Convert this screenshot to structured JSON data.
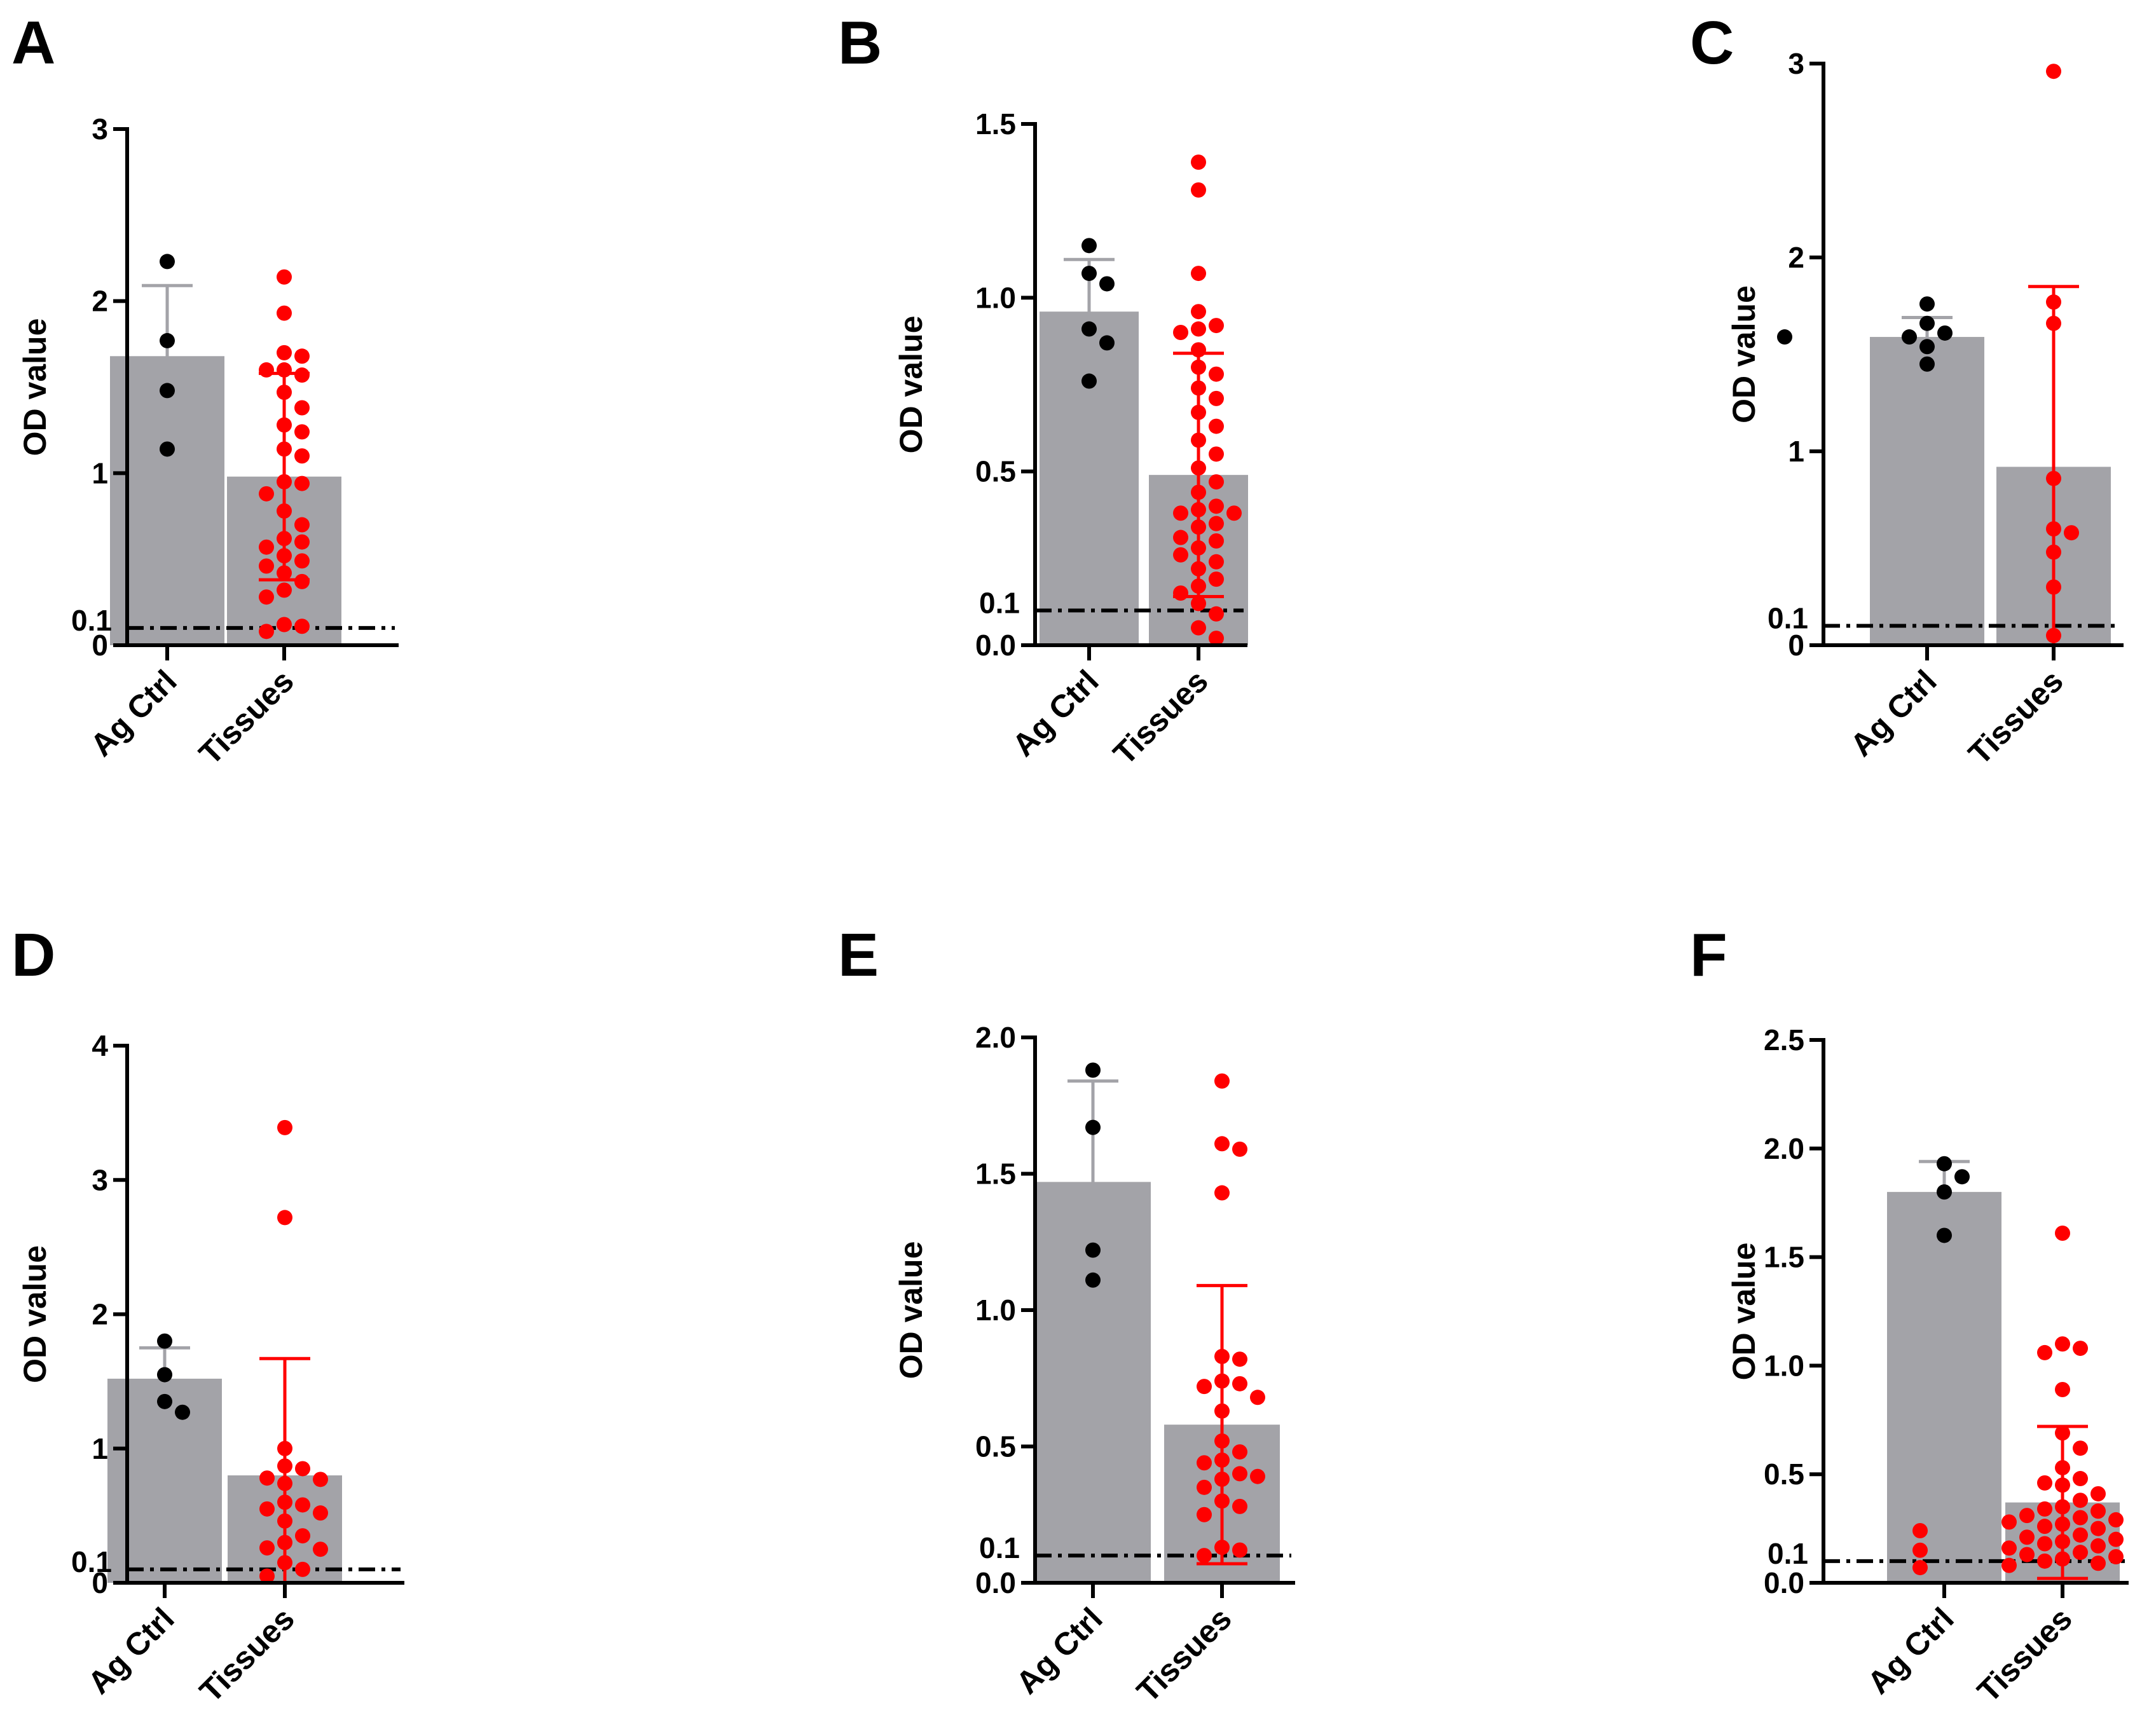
{
  "colors": {
    "bar": "#a3a3a8",
    "ctrl_points": "#000000",
    "tissue_points": "#ff0000",
    "ctrl_error": "#a3a3a8",
    "tissue_error": "#ff0000",
    "axis": "#000000"
  },
  "chart_data": [
    {
      "panel": "A",
      "type": "bar",
      "ylabel": "OD value",
      "categories": [
        "Ag Ctrl",
        "Tissues"
      ],
      "ylim": [
        0,
        3
      ],
      "yticks": [
        {
          "v": 0,
          "label": "0"
        },
        {
          "v": 1,
          "label": "1"
        },
        {
          "v": 2,
          "label": "2"
        },
        {
          "v": 3,
          "label": "3"
        }
      ],
      "cutoff": {
        "value": 0.1,
        "label": "0.1"
      },
      "bars": [
        {
          "category": "Ag Ctrl",
          "mean": 1.68,
          "sd": 0.41,
          "points": [
            2.23,
            1.77,
            1.48,
            1.14
          ]
        },
        {
          "category": "Tissues",
          "mean": 0.98,
          "sd": 0.6,
          "points": [
            2.14,
            1.93,
            1.7,
            1.68,
            1.6,
            1.6,
            1.57,
            1.47,
            1.38,
            1.28,
            1.24,
            1.14,
            1.1,
            0.95,
            0.94,
            0.88,
            0.78,
            0.7,
            0.62,
            0.6,
            0.57,
            0.52,
            0.49,
            0.46,
            0.42,
            0.37,
            0.32,
            0.28,
            0.12,
            0.11,
            0.08
          ]
        }
      ]
    },
    {
      "panel": "B",
      "type": "bar",
      "ylabel": "OD value",
      "categories": [
        "Ag Ctrl",
        "Tissues"
      ],
      "ylim": [
        0,
        1.5
      ],
      "yticks": [
        {
          "v": 0,
          "label": "0.0"
        },
        {
          "v": 0.5,
          "label": "0.5"
        },
        {
          "v": 1,
          "label": "1.0"
        },
        {
          "v": 1.5,
          "label": "1.5"
        }
      ],
      "cutoff": {
        "value": 0.1,
        "label": "0.1"
      },
      "bars": [
        {
          "category": "Ag Ctrl",
          "mean": 0.96,
          "sd": 0.15,
          "points": [
            1.15,
            1.07,
            1.04,
            0.91,
            0.87,
            0.76
          ]
        },
        {
          "category": "Tissues",
          "mean": 0.49,
          "sd": 0.35,
          "points": [
            1.39,
            1.31,
            1.07,
            0.96,
            0.92,
            0.91,
            0.9,
            0.85,
            0.8,
            0.78,
            0.74,
            0.71,
            0.67,
            0.63,
            0.59,
            0.55,
            0.51,
            0.47,
            0.44,
            0.4,
            0.39,
            0.38,
            0.38,
            0.35,
            0.34,
            0.31,
            0.3,
            0.28,
            0.26,
            0.24,
            0.22,
            0.19,
            0.17,
            0.15,
            0.12,
            0.09,
            0.05,
            0.02
          ]
        }
      ]
    },
    {
      "panel": "C",
      "type": "bar",
      "ylabel": "OD value",
      "categories": [
        "Ag Ctrl",
        "Tissues"
      ],
      "ylim": [
        0,
        3
      ],
      "yticks": [
        {
          "v": 0,
          "label": "0"
        },
        {
          "v": 1,
          "label": "1"
        },
        {
          "v": 2,
          "label": "2"
        },
        {
          "v": 3,
          "label": "3"
        }
      ],
      "cutoff": {
        "value": 0.1,
        "label": "0.1"
      },
      "bars": [
        {
          "category": "Ag Ctrl",
          "mean": 1.59,
          "sd": 0.1,
          "points": [
            1.76,
            1.66,
            1.61,
            1.59,
            1.59,
            1.54,
            1.45
          ]
        },
        {
          "category": "Tissues",
          "mean": 0.92,
          "sd": 0.93,
          "points": [
            2.96,
            1.77,
            1.66,
            0.86,
            0.6,
            0.58,
            0.48,
            0.3,
            0.05
          ]
        }
      ]
    },
    {
      "panel": "D",
      "type": "bar",
      "ylabel": "OD value",
      "categories": [
        "Ag Ctrl",
        "Tissues"
      ],
      "ylim": [
        0,
        4
      ],
      "yticks": [
        {
          "v": 0,
          "label": "0"
        },
        {
          "v": 1,
          "label": "1"
        },
        {
          "v": 2,
          "label": "2"
        },
        {
          "v": 3,
          "label": "3"
        },
        {
          "v": 4,
          "label": "4"
        }
      ],
      "cutoff": {
        "value": 0.1,
        "label": "0.1"
      },
      "bars": [
        {
          "category": "Ag Ctrl",
          "mean": 1.52,
          "sd": 0.23,
          "points": [
            1.8,
            1.55,
            1.35,
            1.27
          ]
        },
        {
          "category": "Tissues",
          "mean": 0.8,
          "sd": 0.87,
          "points": [
            3.39,
            2.72,
            1.0,
            0.87,
            0.85,
            0.78,
            0.77,
            0.74,
            0.6,
            0.58,
            0.55,
            0.52,
            0.46,
            0.35,
            0.3,
            0.26,
            0.25,
            0.15,
            0.1,
            0.05
          ]
        }
      ]
    },
    {
      "panel": "E",
      "type": "bar",
      "ylabel": "OD value",
      "categories": [
        "Ag Ctrl",
        "Tissues"
      ],
      "ylim": [
        0,
        2
      ],
      "yticks": [
        {
          "v": 0,
          "label": "0.0"
        },
        {
          "v": 0.5,
          "label": "0.5"
        },
        {
          "v": 1,
          "label": "1.0"
        },
        {
          "v": 1.5,
          "label": "1.5"
        },
        {
          "v": 2,
          "label": "2.0"
        }
      ],
      "cutoff": {
        "value": 0.1,
        "label": "0.1"
      },
      "bars": [
        {
          "category": "Ag Ctrl",
          "mean": 1.47,
          "sd": 0.37,
          "points": [
            1.88,
            1.67,
            1.22,
            1.11
          ]
        },
        {
          "category": "Tissues",
          "mean": 0.58,
          "sd": 0.51,
          "points": [
            1.84,
            1.61,
            1.59,
            1.43,
            0.83,
            0.82,
            0.74,
            0.73,
            0.72,
            0.68,
            0.63,
            0.52,
            0.48,
            0.45,
            0.44,
            0.4,
            0.39,
            0.38,
            0.35,
            0.3,
            0.28,
            0.25,
            0.13,
            0.12,
            0.1
          ]
        }
      ]
    },
    {
      "panel": "F",
      "type": "bar",
      "ylabel": "OD value",
      "categories": [
        "Ag Ctrl",
        "Tissues"
      ],
      "ylim": [
        0,
        2.5
      ],
      "yticks": [
        {
          "v": 0,
          "label": "0.0"
        },
        {
          "v": 0.5,
          "label": "0.5"
        },
        {
          "v": 1,
          "label": "1.0"
        },
        {
          "v": 1.5,
          "label": "1.5"
        },
        {
          "v": 2,
          "label": "2.0"
        },
        {
          "v": 2.5,
          "label": "2.5"
        }
      ],
      "cutoff": {
        "value": 0.1,
        "label": "0.1"
      },
      "bars": [
        {
          "category": "Ag Ctrl",
          "mean": 1.8,
          "sd": 0.14,
          "points": [
            1.93,
            1.87,
            1.8,
            1.6
          ]
        },
        {
          "category": "Tissues",
          "mean": 0.37,
          "sd": 0.35,
          "points": [
            1.61,
            1.1,
            1.08,
            1.06,
            0.89,
            0.69,
            0.62,
            0.53,
            0.48,
            0.46,
            0.45,
            0.41,
            0.38,
            0.35,
            0.34,
            0.33,
            0.31,
            0.3,
            0.29,
            0.28,
            0.27,
            0.26,
            0.25,
            0.24,
            0.22,
            0.21,
            0.2,
            0.19,
            0.18,
            0.17,
            0.16,
            0.15,
            0.14,
            0.13,
            0.12,
            0.11,
            0.1,
            0.09,
            0.08,
            0.07
          ]
        }
      ]
    }
  ]
}
